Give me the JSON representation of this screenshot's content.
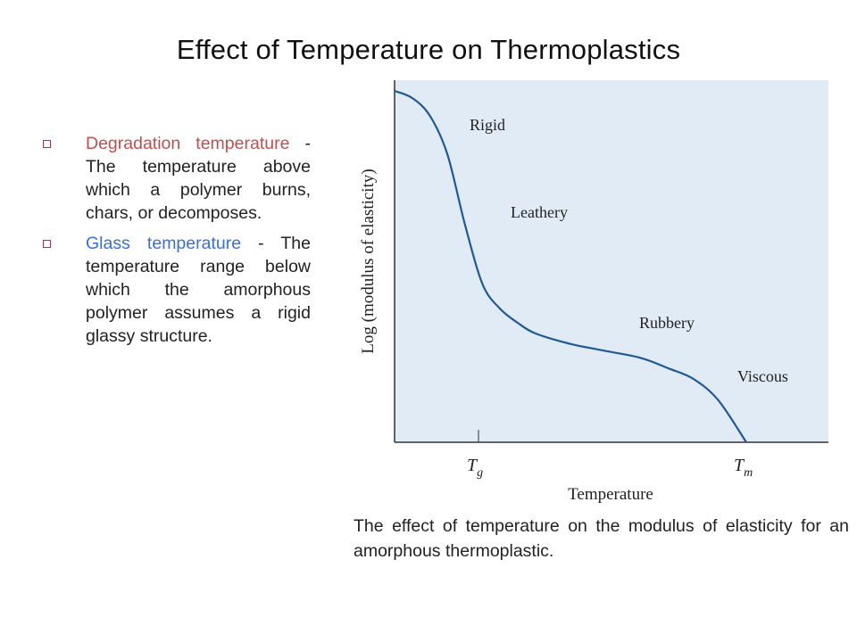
{
  "slide": {
    "title": "Effect of Temperature on Thermoplastics"
  },
  "bullets": [
    {
      "term": "Degradation temperature",
      "separator": " - ",
      "definition": "The temperature above which a polymer burns, chars, or decomposes.",
      "term_color": "#c0504d"
    },
    {
      "term": "Glass temperature",
      "separator": " - ",
      "definition": "The temperature range below which the amorphous polymer assumes a rigid glassy structure.",
      "term_color": "#3a6fd8"
    }
  ],
  "caption": "The effect of temperature on the modulus of elasticity for an amorphous thermoplastic.",
  "chart_data": {
    "type": "line",
    "title": "",
    "xlabel": "Temperature",
    "ylabel": "Log (modulus of elasticity)",
    "x_tick_labels": [
      {
        "base": "T",
        "sub": "g"
      },
      {
        "base": "T",
        "sub": "m"
      }
    ],
    "region_labels": [
      "Rigid",
      "Leathery",
      "Rubbery",
      "Viscous"
    ],
    "grid": false,
    "plot_background": "#e1ebf5",
    "line_color": "#1f5a96",
    "qualitative": true,
    "series": [
      {
        "x": [
          0.0,
          0.05,
          0.1,
          0.15,
          0.2,
          0.25,
          0.3,
          0.35,
          0.4,
          0.5,
          0.6,
          0.7,
          0.78,
          0.85,
          0.92,
          1.0
        ],
        "y": [
          1.0,
          0.98,
          0.93,
          0.82,
          0.62,
          0.45,
          0.38,
          0.34,
          0.31,
          0.28,
          0.26,
          0.24,
          0.21,
          0.18,
          0.12,
          0.0
        ]
      }
    ]
  }
}
